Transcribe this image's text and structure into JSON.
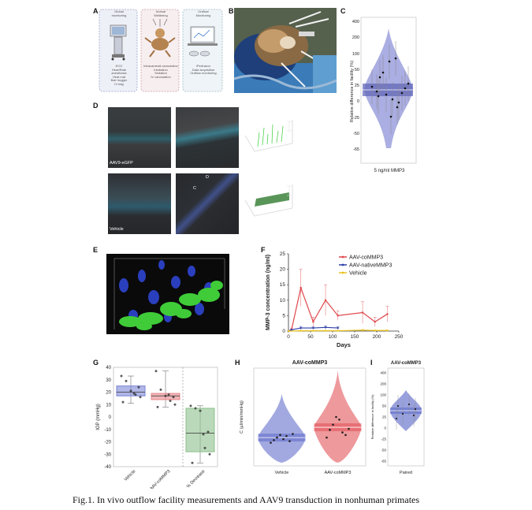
{
  "figure": {
    "caption": "Fig.1. In vivo outflow facility measurements and AAV9 transduction in nonhuman primates",
    "panel_letters": [
      "A",
      "B",
      "C",
      "D",
      "E",
      "F",
      "G",
      "H",
      "I"
    ]
  },
  "panel_a": {
    "box1": {
      "header": "Global\nmonitoring",
      "text": "ECG\nHeartRate\nanesthesia\nHeat mat\nBair hugger\nIV bag"
    },
    "box2": {
      "header": "Animal\nWellbeing",
      "text": "Intracameral cannulation\nIntubation\nSedation\nIV cannulation"
    },
    "box3": {
      "header": "Outflow\nMonitoring",
      "text": "iPerfusion\nData acquisition\nOutflow monitoring"
    }
  },
  "panel_d": {
    "label_top": "AAV9-eGFP",
    "label_bottom": "Vehicle",
    "marker_c": "C",
    "marker_d": "D"
  },
  "panel_c": {
    "ylabel": "Relative difference in facility (%)",
    "xlabel": "5 ng/ml MMP3",
    "yticks": [
      "400",
      "200",
      "100",
      "50",
      "25",
      "0",
      "-25",
      "-50",
      "-65"
    ]
  },
  "chart_data": [
    {
      "type": "line",
      "panel": "F",
      "xlabel": "Days",
      "ylabel": "MMP-3 concentration (ng/ml)",
      "xlim": [
        0,
        250
      ],
      "ylim": [
        0,
        25
      ],
      "xticks": [
        0,
        50,
        100,
        150,
        200,
        250
      ],
      "yticks": [
        0,
        5,
        10,
        15,
        20,
        25
      ],
      "legend_position": "top-right",
      "series": [
        {
          "name": "AAV-coMMP3",
          "color": "#e0464b",
          "x": [
            0,
            7,
            28,
            56,
            84,
            112,
            168,
            196,
            224
          ],
          "y": [
            0,
            0.5,
            14,
            3,
            10,
            5,
            6,
            3,
            5.5
          ],
          "err": [
            0,
            0.5,
            6,
            1.5,
            5,
            1.5,
            3.5,
            1.5,
            2.5
          ]
        },
        {
          "name": "AAV-nativeMMP3",
          "color": "#2f3ea8",
          "x": [
            0,
            7,
            28,
            56,
            84,
            112
          ],
          "y": [
            0,
            0.4,
            1,
            1,
            1.2,
            1
          ],
          "err": [
            0,
            0.2,
            0.5,
            0.4,
            0.5,
            0.4
          ]
        },
        {
          "name": "Vehicle",
          "color": "#e8c21e",
          "x": [
            0,
            28,
            56,
            84,
            112,
            168,
            196,
            224
          ],
          "y": [
            0,
            0.1,
            0.1,
            0.1,
            0.1,
            0.3,
            0.2,
            0.2
          ],
          "err": [
            0,
            0.1,
            0.1,
            0.1,
            0.1,
            0.2,
            0.1,
            0.1
          ]
        }
      ]
    },
    {
      "type": "box",
      "panel": "G",
      "ylabel": "IOP (mmHg)",
      "ylim": [
        -40,
        40
      ],
      "yticks": [
        40,
        30,
        20,
        10,
        0,
        -10,
        -20,
        -30,
        -40
      ],
      "categories": [
        "Vehicle",
        "AAV-coMMP3",
        "% Decrease"
      ],
      "colors": [
        "#7b86d6",
        "#e8868a",
        "#8cc08c"
      ],
      "boxes": [
        {
          "q1": 17,
          "median": 20,
          "q3": 25,
          "min": 11,
          "max": 33
        },
        {
          "q1": 14,
          "median": 17,
          "q3": 19,
          "min": 8,
          "max": 37
        },
        {
          "q1": -28,
          "median": -13,
          "q3": 7,
          "min": -37,
          "max": 9
        }
      ],
      "points": [
        [
          33,
          29,
          21,
          18,
          16,
          12,
          19,
          24
        ],
        [
          37,
          22,
          17,
          13,
          10,
          8,
          18,
          16
        ],
        [
          9,
          7,
          5,
          -25,
          -30,
          -37,
          -14,
          -12
        ]
      ]
    },
    {
      "type": "violin",
      "panel": "H",
      "title": "AAV-coMMP3",
      "ylabel": "C (µl/min/mmHg)",
      "ylim": [
        0,
        1.9
      ],
      "categories": [
        "Vehicle",
        "AAV-coMMP3"
      ],
      "colors": [
        "#5563c7",
        "#e0464b"
      ],
      "medians": [
        0.55,
        0.75
      ],
      "points": [
        [
          0.45,
          0.5,
          0.55,
          0.6,
          0.52,
          0.58,
          0.48,
          0.62
        ],
        [
          0.55,
          0.7,
          0.8,
          0.95,
          0.9,
          0.65,
          0.6,
          0.72
        ]
      ]
    },
    {
      "type": "violin",
      "panel": "I",
      "title": "AAV-coMMP3",
      "ylabel": "Relative difference in facility (%)",
      "xlabel": "Paired",
      "yticks": [
        "400",
        "200",
        "100",
        "50",
        "25",
        "0",
        "-25",
        "-50",
        "-65"
      ],
      "color": "#5563c7"
    }
  ]
}
